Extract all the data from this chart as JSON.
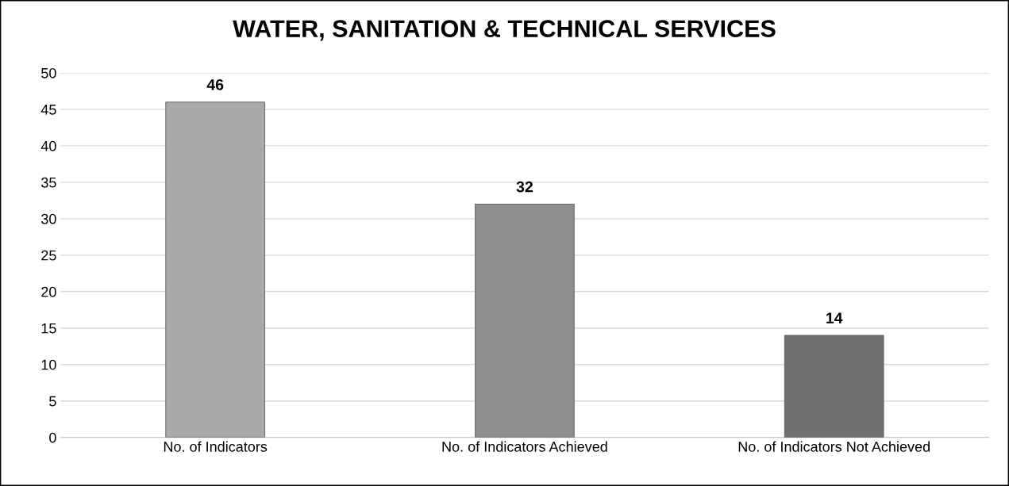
{
  "chart_data": {
    "type": "bar",
    "title": "WATER, SANITATION & TECHNICAL SERVICES",
    "categories": [
      "No. of Indicators",
      "No. of Indicators Achieved",
      "No. of Indicators Not Achieved"
    ],
    "values": [
      46,
      32,
      14
    ],
    "colors": [
      "#a9a9a9",
      "#8e8e8e",
      "#707070"
    ],
    "ylim": [
      0,
      50
    ],
    "yticks": [
      0,
      5,
      10,
      15,
      20,
      25,
      30,
      35,
      40,
      45,
      50
    ],
    "grid": "y",
    "data_labels": true,
    "legend": false
  }
}
